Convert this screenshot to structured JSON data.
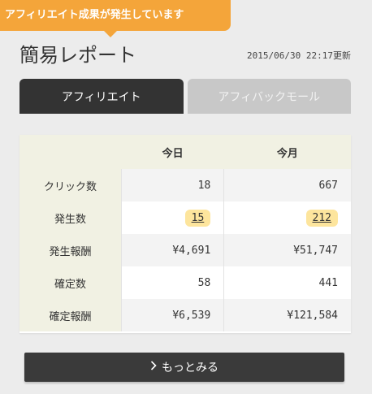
{
  "banner": {
    "text": "アフィリエイト成果が発生しています"
  },
  "header": {
    "title": "簡易レポート",
    "updated": "2015/06/30 22:17更新"
  },
  "tabs": [
    {
      "label": "アフィリエイト",
      "active": true
    },
    {
      "label": "アフィバックモール",
      "active": false
    }
  ],
  "table": {
    "columns": [
      "今日",
      "今月"
    ],
    "rows": [
      {
        "label": "クリック数",
        "today": "18",
        "month": "667",
        "link": false
      },
      {
        "label": "発生数",
        "today": "15",
        "month": "212",
        "link": true
      },
      {
        "label": "発生報酬",
        "today": "¥4,691",
        "month": "¥51,747",
        "link": false
      },
      {
        "label": "確定数",
        "today": "58",
        "month": "441",
        "link": false
      },
      {
        "label": "確定報酬",
        "today": "¥6,539",
        "month": "¥121,584",
        "link": false
      }
    ]
  },
  "more_button": {
    "icon": "chevron-right-icon",
    "label": "もっとみる"
  },
  "colors": {
    "accent": "#f4a53a",
    "highlight": "#fde59d",
    "dark": "#333333"
  }
}
